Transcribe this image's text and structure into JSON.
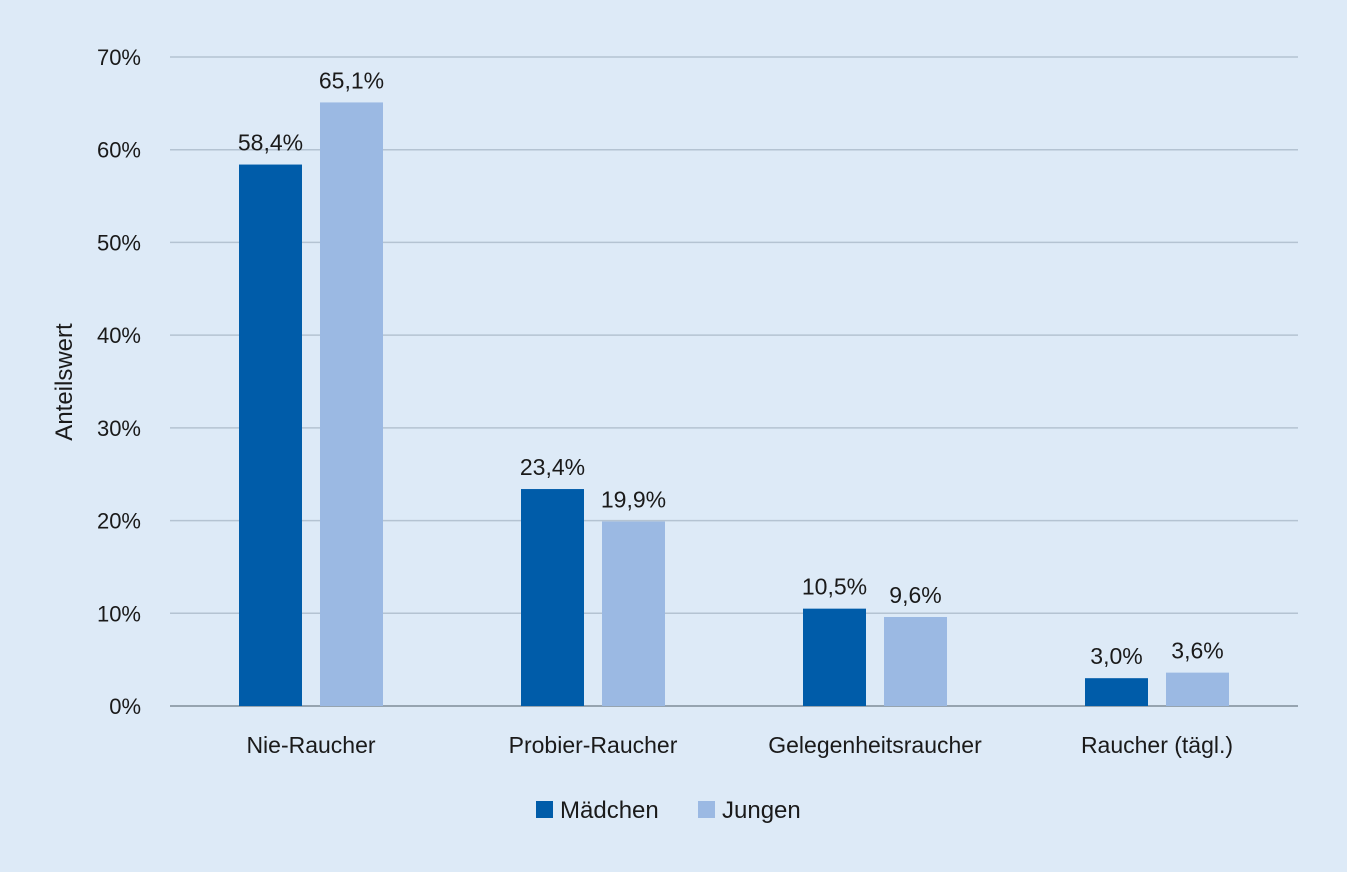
{
  "chart_data": {
    "type": "bar",
    "ylabel": "Anteilswert",
    "xlabel": "",
    "ylim": [
      0,
      70
    ],
    "yticks": [
      0,
      10,
      20,
      30,
      40,
      50,
      60,
      70
    ],
    "ytick_labels": [
      "0%",
      "10%",
      "20%",
      "30%",
      "40%",
      "50%",
      "60%",
      "70%"
    ],
    "grid": true,
    "legend_position": "bottom",
    "categories": [
      "Nie-Raucher",
      "Probier-Raucher",
      "Gelegenheitsraucher",
      "Raucher (tägl.)"
    ],
    "series": [
      {
        "name": "Mädchen",
        "color": "#005ca9",
        "values": [
          58.4,
          23.4,
          10.5,
          3.0
        ],
        "labels": [
          "58,4%",
          "23,4%",
          "10,5%",
          "3,0%"
        ]
      },
      {
        "name": "Jungen",
        "color": "#9bb9e3",
        "values": [
          65.1,
          19.9,
          9.6,
          3.6
        ],
        "labels": [
          "65,1%",
          "19,9%",
          "9,6%",
          "3,6%"
        ]
      }
    ]
  }
}
